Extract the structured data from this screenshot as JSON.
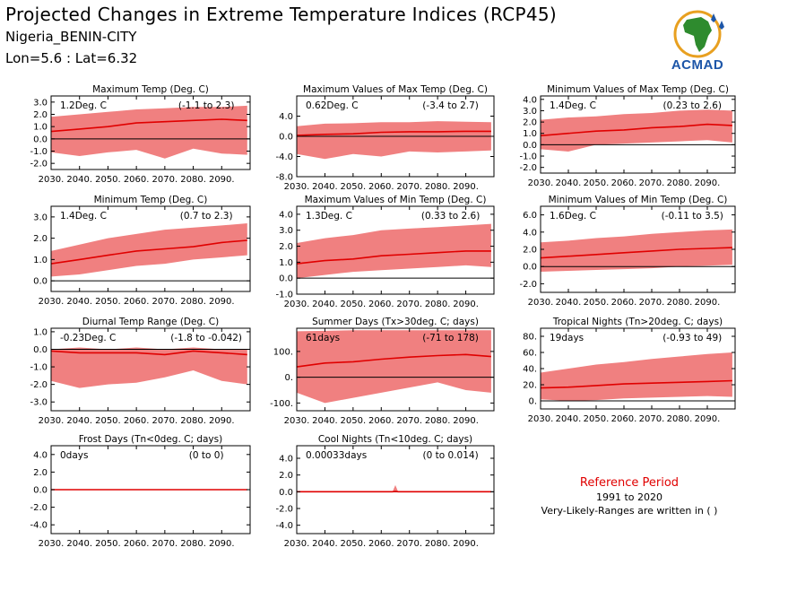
{
  "header": {
    "title": "Projected Changes in Extreme Temperature Indices (RCP45)",
    "location": "Nigeria_BENIN-CITY",
    "coords": "Lon=5.6 : Lat=6.32"
  },
  "logo": {
    "text": "ACMAD",
    "icon": "africa-map-logo-icon"
  },
  "reference": {
    "title": "Reference Period",
    "years": "1991 to 2020",
    "note": "Very-Likely-Ranges are written in ( )"
  },
  "colors": {
    "band": "#f08080",
    "line": "#e00000",
    "zero": "#000000"
  },
  "x_tick_labels": [
    "2030.",
    "2040.",
    "2050.",
    "2060.",
    "2070.",
    "2080.",
    "2090."
  ],
  "chart_data": [
    {
      "type": "area",
      "title": "Maximum Temp (Deg. C)",
      "value_label": "1.2Deg. C",
      "range_label": "(-1.1 to 2.3)",
      "ylim": [
        -2.5,
        3.5
      ],
      "yticks": [
        -2,
        -1,
        0,
        1,
        2,
        3
      ],
      "ytick_labels": [
        "-2.0",
        "-1.0",
        "0.0",
        "1.0",
        "2.0",
        "3.0"
      ],
      "xlim": [
        2030,
        2100
      ],
      "x": [
        2030,
        2040,
        2050,
        2060,
        2070,
        2080,
        2090,
        2099
      ],
      "median": [
        0.6,
        0.8,
        1.0,
        1.3,
        1.4,
        1.5,
        1.6,
        1.5
      ],
      "lower": [
        -1.1,
        -1.4,
        -1.1,
        -0.9,
        -1.6,
        -0.8,
        -1.2,
        -1.3
      ],
      "upper": [
        1.8,
        2.0,
        2.2,
        2.4,
        2.5,
        2.6,
        2.6,
        2.7
      ]
    },
    {
      "type": "area",
      "title": "Maximum Values of Max Temp (Deg. C)",
      "value_label": "0.62Deg. C",
      "range_label": "(-3.4 to 2.7)",
      "ylim": [
        -8,
        8
      ],
      "yticks": [
        -8,
        -4,
        0,
        4
      ],
      "ytick_labels": [
        "-8.0",
        "-4.0",
        "0.0",
        "4.0"
      ],
      "xlim": [
        2030,
        2100
      ],
      "x": [
        2030,
        2040,
        2050,
        2060,
        2070,
        2080,
        2090,
        2099
      ],
      "median": [
        0.2,
        0.4,
        0.5,
        0.8,
        0.9,
        0.9,
        1.0,
        1.0
      ],
      "lower": [
        -3.5,
        -4.5,
        -3.5,
        -4.0,
        -3.0,
        -3.2,
        -3.0,
        -2.8
      ],
      "upper": [
        2.0,
        2.5,
        2.6,
        2.8,
        2.8,
        3.0,
        2.9,
        2.8
      ]
    },
    {
      "type": "area",
      "title": "Minimum Values of Max Temp (Deg. C)",
      "value_label": "1.4Deg. C",
      "range_label": "(0.23 to 2.6)",
      "ylim": [
        -2.5,
        4.3
      ],
      "yticks": [
        -2,
        -1,
        0,
        1,
        2,
        3,
        4
      ],
      "ytick_labels": [
        "-2.0",
        "-1.0",
        "0.0",
        "1.0",
        "2.0",
        "3.0",
        "4.0"
      ],
      "xlim": [
        2030,
        2100
      ],
      "x": [
        2030,
        2040,
        2050,
        2060,
        2070,
        2080,
        2090,
        2099
      ],
      "median": [
        0.8,
        1.0,
        1.2,
        1.3,
        1.5,
        1.6,
        1.8,
        1.7
      ],
      "lower": [
        -0.4,
        -0.6,
        0.0,
        0.1,
        0.2,
        0.3,
        0.4,
        0.2
      ],
      "upper": [
        2.2,
        2.4,
        2.5,
        2.7,
        2.8,
        3.0,
        3.1,
        3.0
      ]
    },
    {
      "type": "area",
      "title": "Minimum Temp (Deg. C)",
      "value_label": "1.4Deg. C",
      "range_label": "(0.7 to 2.3)",
      "ylim": [
        -0.5,
        3.5
      ],
      "yticks": [
        0,
        1,
        2,
        3
      ],
      "ytick_labels": [
        "0.0",
        "1.0",
        "2.0",
        "3.0"
      ],
      "xlim": [
        2030,
        2100
      ],
      "x": [
        2030,
        2040,
        2050,
        2060,
        2070,
        2080,
        2090,
        2099
      ],
      "median": [
        0.8,
        1.0,
        1.2,
        1.4,
        1.5,
        1.6,
        1.8,
        1.9
      ],
      "lower": [
        0.2,
        0.3,
        0.5,
        0.7,
        0.8,
        1.0,
        1.1,
        1.2
      ],
      "upper": [
        1.4,
        1.7,
        2.0,
        2.2,
        2.4,
        2.5,
        2.6,
        2.7
      ]
    },
    {
      "type": "area",
      "title": "Maximum Values of Min Temp (Deg. C)",
      "value_label": "1.3Deg. C",
      "range_label": "(0.33 to 2.6)",
      "ylim": [
        -1,
        4.5
      ],
      "yticks": [
        -1,
        0,
        1,
        2,
        3,
        4
      ],
      "ytick_labels": [
        "-1.0",
        "0.0",
        "1.0",
        "2.0",
        "3.0",
        "4.0"
      ],
      "xlim": [
        2030,
        2100
      ],
      "x": [
        2030,
        2040,
        2050,
        2060,
        2070,
        2080,
        2090,
        2099
      ],
      "median": [
        0.9,
        1.1,
        1.2,
        1.4,
        1.5,
        1.6,
        1.7,
        1.7
      ],
      "lower": [
        0.0,
        0.2,
        0.4,
        0.5,
        0.6,
        0.7,
        0.8,
        0.7
      ],
      "upper": [
        2.2,
        2.5,
        2.7,
        3.0,
        3.1,
        3.2,
        3.3,
        3.4
      ]
    },
    {
      "type": "area",
      "title": "Minimum Values of Min Temp (Deg. C)",
      "value_label": "1.6Deg. C",
      "range_label": "(-0.11 to 3.5)",
      "ylim": [
        -3,
        7
      ],
      "yticks": [
        -2,
        0,
        2,
        4,
        6
      ],
      "ytick_labels": [
        "-2.0",
        "0.0",
        "2.0",
        "4.0",
        "6.0"
      ],
      "xlim": [
        2030,
        2100
      ],
      "x": [
        2030,
        2040,
        2050,
        2060,
        2070,
        2080,
        2090,
        2099
      ],
      "median": [
        1.0,
        1.2,
        1.4,
        1.6,
        1.8,
        2.0,
        2.1,
        2.2
      ],
      "lower": [
        -0.6,
        -0.5,
        -0.4,
        -0.3,
        -0.2,
        0.0,
        0.1,
        0.2
      ],
      "upper": [
        2.8,
        3.0,
        3.3,
        3.5,
        3.8,
        4.0,
        4.2,
        4.3
      ]
    },
    {
      "type": "area",
      "title": "Diurnal Temp Range (Deg. C)",
      "value_label": "-0.23Deg. C",
      "range_label": "(-1.8 to -0.042)",
      "ylim": [
        -3.5,
        1.2
      ],
      "yticks": [
        -3,
        -2,
        -1,
        0,
        1
      ],
      "ytick_labels": [
        "-3.0",
        "-2.0",
        "-1.0",
        "0.0",
        "1.0"
      ],
      "xlim": [
        2030,
        2100
      ],
      "x": [
        2030,
        2040,
        2050,
        2060,
        2070,
        2080,
        2090,
        2099
      ],
      "median": [
        -0.1,
        -0.2,
        -0.2,
        -0.2,
        -0.3,
        -0.1,
        -0.2,
        -0.3
      ],
      "lower": [
        -1.8,
        -2.2,
        -2.0,
        -1.9,
        -1.6,
        -1.2,
        -1.8,
        -2.0
      ],
      "upper": [
        0.0,
        0.1,
        0.0,
        0.1,
        0.0,
        0.1,
        0.0,
        0.0
      ]
    },
    {
      "type": "area",
      "title": "Summer Days (Tx>30deg. C; days)",
      "value_label": "61days",
      "range_label": "(-71 to 178)",
      "ylim": [
        -130,
        190
      ],
      "yticks": [
        -100,
        0,
        100
      ],
      "ytick_labels": [
        "-100.",
        "0.",
        "100."
      ],
      "xlim": [
        2030,
        2100
      ],
      "x": [
        2030,
        2040,
        2050,
        2060,
        2070,
        2080,
        2090,
        2099
      ],
      "median": [
        40,
        55,
        60,
        70,
        78,
        84,
        88,
        80
      ],
      "lower": [
        -60,
        -100,
        -80,
        -60,
        -40,
        -20,
        -50,
        -60
      ],
      "upper": [
        178,
        180,
        182,
        182,
        182,
        182,
        182,
        182
      ]
    },
    {
      "type": "area",
      "title": "Tropical Nights (Tn>20deg. C; days)",
      "value_label": "19days",
      "range_label": "(-0.93 to 49)",
      "ylim": [
        -10,
        90
      ],
      "yticks": [
        0,
        20,
        40,
        60,
        80
      ],
      "ytick_labels": [
        "0.",
        "20.",
        "40.",
        "60.",
        "80."
      ],
      "xlim": [
        2030,
        2100
      ],
      "x": [
        2030,
        2040,
        2050,
        2060,
        2070,
        2080,
        2090,
        2099
      ],
      "median": [
        16,
        17,
        19,
        21,
        22,
        23,
        24,
        25
      ],
      "lower": [
        2,
        0,
        1,
        3,
        4,
        5,
        6,
        5
      ],
      "upper": [
        35,
        40,
        45,
        48,
        52,
        55,
        58,
        60
      ]
    },
    {
      "type": "area",
      "title": "Frost Days (Tn<0deg. C; days)",
      "value_label": "0days",
      "range_label": "(0 to 0)",
      "ylim": [
        -5,
        5
      ],
      "yticks": [
        -4,
        -2,
        0,
        2,
        4
      ],
      "ytick_labels": [
        "-4.0",
        "-2.0",
        "0.0",
        "2.0",
        "4.0"
      ],
      "xlim": [
        2030,
        2100
      ],
      "x": [
        2030,
        2099
      ],
      "median": [
        0,
        0
      ],
      "lower": [
        0,
        0
      ],
      "upper": [
        0,
        0
      ]
    },
    {
      "type": "area",
      "title": "Cool Nights (Tn<10deg. C; days)",
      "value_label": "0.00033days",
      "range_label": "(0 to 0.014)",
      "ylim": [
        -5,
        5.5
      ],
      "yticks": [
        -4,
        -2,
        0,
        2,
        4
      ],
      "ytick_labels": [
        "-4.0",
        "-2.0",
        "0.0",
        "2.0",
        "4.0"
      ],
      "xlim": [
        2030,
        2100
      ],
      "x": [
        2030,
        2064,
        2065,
        2066,
        2099
      ],
      "median": [
        0,
        0,
        0.05,
        0,
        0
      ],
      "lower": [
        0,
        0,
        0,
        0,
        0
      ],
      "upper": [
        0,
        0,
        0.8,
        0,
        0
      ]
    }
  ]
}
